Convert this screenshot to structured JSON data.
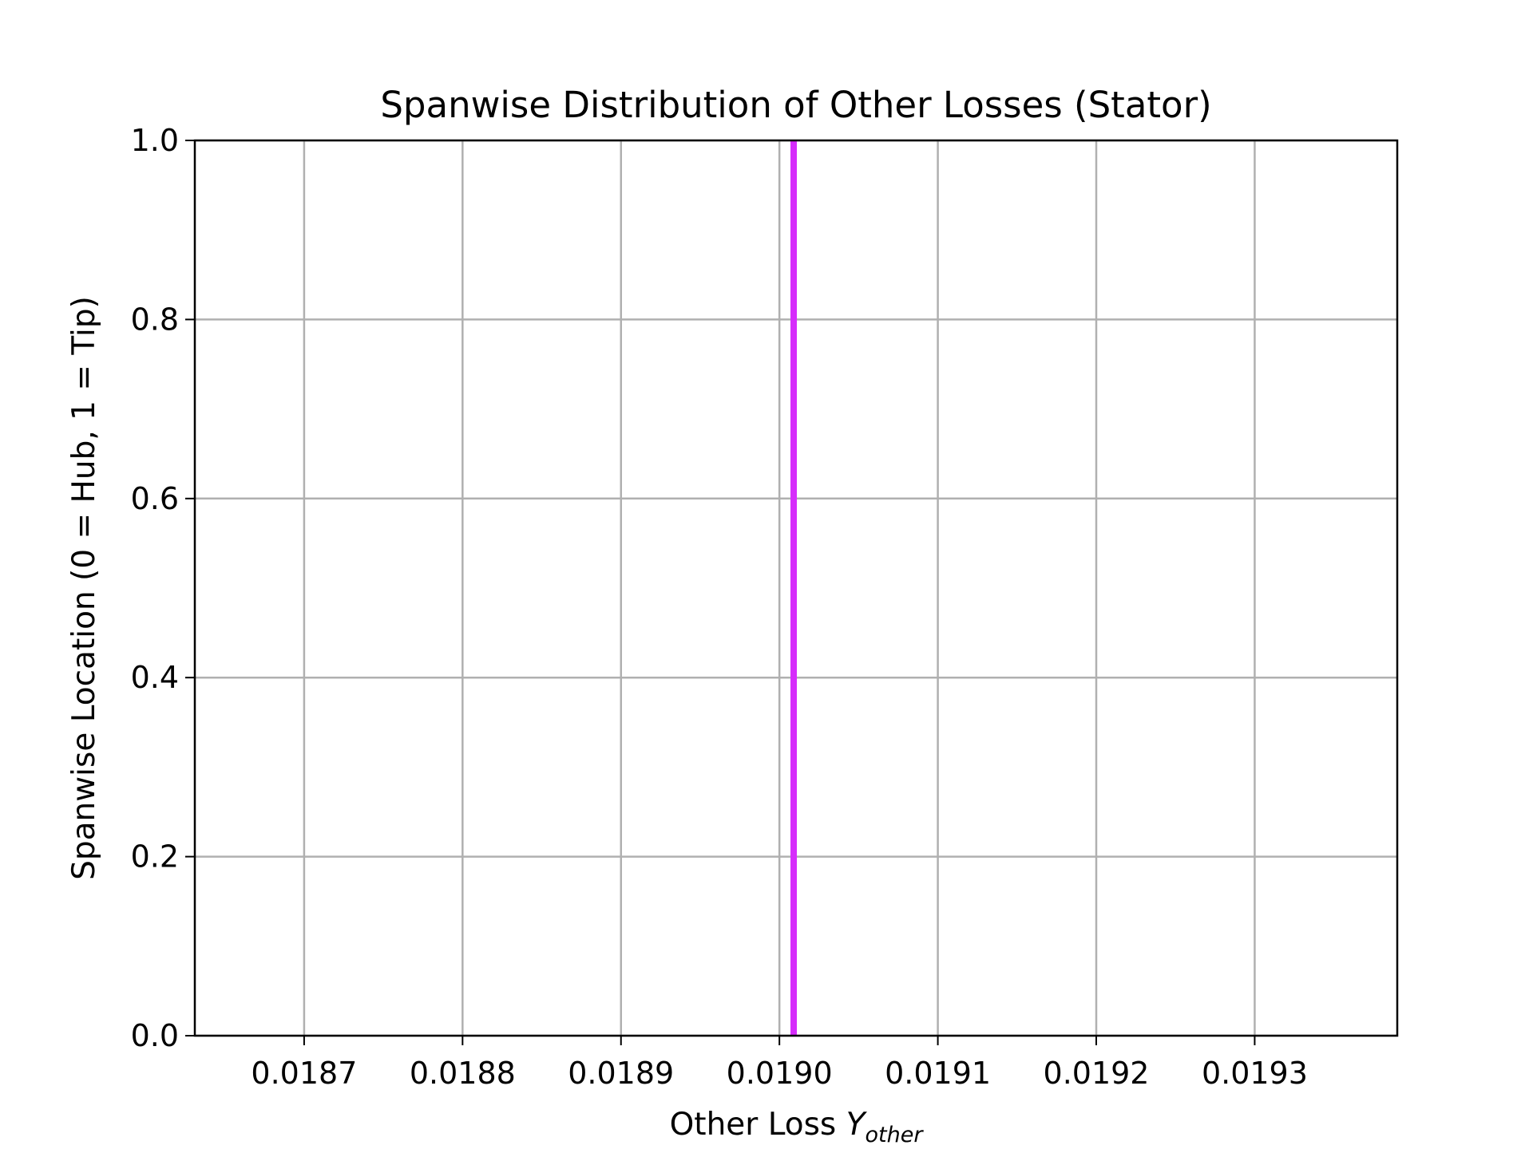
{
  "chart_data": {
    "type": "line",
    "title": "Spanwise Distribution of Other Losses (Stator)",
    "xlabel": {
      "text": "Other Loss ",
      "symbol": "Y",
      "subscript": "other"
    },
    "ylabel": "Spanwise Location (0 = Hub, 1 = Tip)",
    "xlim": [
      0.018631,
      0.01939
    ],
    "ylim": [
      0.0,
      1.0
    ],
    "x_ticks": [
      0.0187,
      0.0188,
      0.0189,
      0.019,
      0.0191,
      0.0192,
      0.0193
    ],
    "x_tick_labels": [
      "0.0187",
      "0.0188",
      "0.0189",
      "0.0190",
      "0.0191",
      "0.0192",
      "0.0193"
    ],
    "y_ticks": [
      0.0,
      0.2,
      0.4,
      0.6,
      0.8,
      1.0
    ],
    "y_tick_labels": [
      "0.0",
      "0.2",
      "0.4",
      "0.6",
      "0.8",
      "1.0"
    ],
    "grid": true,
    "series": [
      {
        "color": "#d62cfb",
        "x": [
          0.019009,
          0.019009
        ],
        "y": [
          0.0,
          1.0
        ]
      }
    ]
  }
}
